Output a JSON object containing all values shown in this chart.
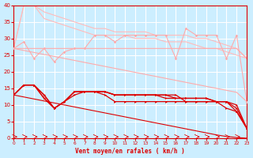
{
  "background_color": "#cceeff",
  "plot_bg_color": "#cceeff",
  "grid_color": "#ffffff",
  "xlabel": "Vent moyen/en rafales ( km/h )",
  "xlim": [
    0,
    23
  ],
  "ylim": [
    0,
    40
  ],
  "xticks": [
    0,
    1,
    2,
    3,
    4,
    5,
    6,
    7,
    8,
    9,
    10,
    11,
    12,
    13,
    14,
    15,
    16,
    17,
    18,
    19,
    20,
    21,
    22,
    23
  ],
  "yticks": [
    0,
    5,
    10,
    15,
    20,
    25,
    30,
    35,
    40
  ],
  "x_vals": [
    0,
    1,
    2,
    3,
    4,
    5,
    6,
    7,
    8,
    9,
    10,
    11,
    12,
    13,
    14,
    15,
    16,
    17,
    18,
    19,
    20,
    21,
    22,
    23
  ],
  "line_diag_top": [
    27,
    40,
    40,
    38,
    37,
    36,
    35,
    34,
    33,
    33,
    32,
    32,
    32,
    32,
    31,
    31,
    31,
    31,
    30,
    30,
    29,
    28,
    27,
    24
  ],
  "line_diag_top2": [
    27,
    40,
    40,
    36,
    35,
    34,
    33,
    32,
    31,
    31,
    31,
    31,
    30,
    30,
    30,
    29,
    29,
    29,
    28,
    27,
    27,
    26,
    25,
    24
  ],
  "line_diag_straight": [
    27,
    26.4,
    25.8,
    25.2,
    24.6,
    24.0,
    23.4,
    22.8,
    22.2,
    21.6,
    21.0,
    20.4,
    19.8,
    19.2,
    18.6,
    18.0,
    17.4,
    16.8,
    16.2,
    15.6,
    15.0,
    14.4,
    13.8,
    11
  ],
  "line_jagged_upper": [
    27,
    29,
    24,
    27,
    23,
    26,
    27,
    27,
    31,
    31,
    29,
    31,
    31,
    31,
    31,
    31,
    24,
    33,
    31,
    31,
    31,
    24,
    31,
    11
  ],
  "line_jagged_mid": [
    27,
    27,
    27,
    27,
    27,
    27,
    27,
    27,
    27,
    27,
    27,
    27,
    27,
    27,
    27,
    27,
    27,
    27,
    27,
    27,
    27,
    27,
    27,
    24
  ],
  "line_dr_1": [
    13,
    16,
    16,
    13,
    9,
    11,
    13,
    14,
    14,
    13,
    11,
    11,
    11,
    11,
    11,
    11,
    11,
    11,
    11,
    11,
    11,
    9,
    8,
    3
  ],
  "line_dr_2": [
    13,
    16,
    16,
    13,
    9,
    11,
    14,
    14,
    14,
    14,
    13,
    13,
    13,
    13,
    13,
    12,
    12,
    12,
    12,
    12,
    11,
    11,
    10,
    3
  ],
  "line_dr_3": [
    13,
    16,
    16,
    12,
    9,
    11,
    14,
    14,
    14,
    14,
    13,
    13,
    13,
    13,
    13,
    13,
    12,
    12,
    12,
    12,
    11,
    11,
    9,
    3
  ],
  "line_dr_4": [
    13,
    16,
    16,
    12,
    9,
    11,
    14,
    14,
    14,
    14,
    13,
    13,
    13,
    13,
    13,
    13,
    13,
    11,
    11,
    11,
    11,
    11,
    8,
    3
  ],
  "line_dr_diag": [
    13,
    12.4,
    11.8,
    11.2,
    10.6,
    10.0,
    9.4,
    8.8,
    8.2,
    7.6,
    7.0,
    6.4,
    5.8,
    5.2,
    4.6,
    4.0,
    3.4,
    2.8,
    2.2,
    1.6,
    1.0,
    0.5,
    0.2,
    0
  ],
  "color_light": "#ffaaaa",
  "color_light2": "#ffbbbb",
  "color_med": "#ff8888",
  "color_dark": "#dd0000"
}
